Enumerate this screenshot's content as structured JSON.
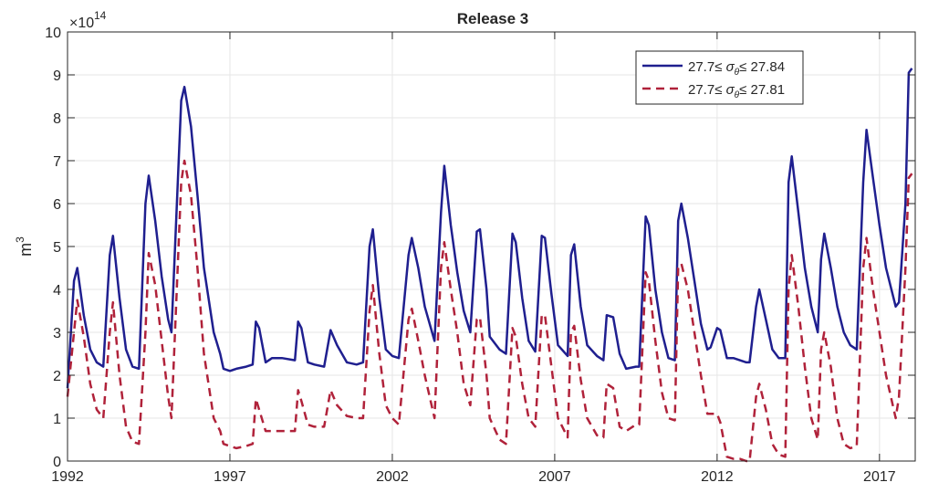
{
  "chart_data": {
    "type": "line",
    "title": "Release 3",
    "ylabel": "m",
    "ylabel_superscript": "3",
    "xlabel": "",
    "y_multiplier": {
      "base": "×10",
      "exponent": "14"
    },
    "xlim": [
      1992,
      2018.1
    ],
    "ylim": [
      0,
      10
    ],
    "xticks": [
      1992,
      1997,
      2002,
      2007,
      2012,
      2017
    ],
    "xtick_labels": [
      "1992",
      "1997",
      "2002",
      "2007",
      "2012",
      "2017"
    ],
    "yticks": [
      0,
      1,
      2,
      3,
      4,
      5,
      6,
      7,
      8,
      9,
      10
    ],
    "ytick_labels": [
      "0",
      "1",
      "2",
      "3",
      "4",
      "5",
      "6",
      "7",
      "8",
      "9",
      "10"
    ],
    "grid": true,
    "legend_position": "top-right",
    "series": [
      {
        "name": "27.7≤ σθ≤ 27.84",
        "legend": {
          "pre": "27.7≤ ",
          "sym": "σ",
          "sub": "θ",
          "post": "≤ 27.84"
        },
        "color": "#1f1f8f",
        "dash": "solid",
        "points": [
          [
            1992.0,
            1.7
          ],
          [
            1992.2,
            4.2
          ],
          [
            1992.3,
            4.5
          ],
          [
            1992.5,
            3.4
          ],
          [
            1992.7,
            2.6
          ],
          [
            1992.9,
            2.3
          ],
          [
            1993.1,
            2.2
          ],
          [
            1993.3,
            4.8
          ],
          [
            1993.4,
            5.25
          ],
          [
            1993.6,
            3.8
          ],
          [
            1993.8,
            2.6
          ],
          [
            1994.0,
            2.2
          ],
          [
            1994.2,
            2.15
          ],
          [
            1994.4,
            6.0
          ],
          [
            1994.5,
            6.65
          ],
          [
            1994.7,
            5.6
          ],
          [
            1994.9,
            4.3
          ],
          [
            1995.1,
            3.3
          ],
          [
            1995.2,
            3.0
          ],
          [
            1995.5,
            8.4
          ],
          [
            1995.6,
            8.72
          ],
          [
            1995.8,
            7.8
          ],
          [
            1996.0,
            6.2
          ],
          [
            1996.2,
            4.5
          ],
          [
            1996.5,
            3.0
          ],
          [
            1996.7,
            2.5
          ],
          [
            1996.8,
            2.15
          ],
          [
            1997.0,
            2.1
          ],
          [
            1997.2,
            2.15
          ],
          [
            1997.5,
            2.2
          ],
          [
            1997.7,
            2.25
          ],
          [
            1997.8,
            3.25
          ],
          [
            1997.9,
            3.1
          ],
          [
            1998.1,
            2.3
          ],
          [
            1998.3,
            2.4
          ],
          [
            1998.6,
            2.4
          ],
          [
            1999.0,
            2.35
          ],
          [
            1999.1,
            3.25
          ],
          [
            1999.2,
            3.1
          ],
          [
            1999.4,
            2.3
          ],
          [
            1999.6,
            2.25
          ],
          [
            1999.9,
            2.2
          ],
          [
            2000.1,
            3.05
          ],
          [
            2000.3,
            2.7
          ],
          [
            2000.6,
            2.3
          ],
          [
            2000.9,
            2.25
          ],
          [
            2001.1,
            2.3
          ],
          [
            2001.3,
            5.0
          ],
          [
            2001.4,
            5.4
          ],
          [
            2001.6,
            3.8
          ],
          [
            2001.8,
            2.6
          ],
          [
            2002.0,
            2.45
          ],
          [
            2002.2,
            2.4
          ],
          [
            2002.5,
            4.8
          ],
          [
            2002.6,
            5.2
          ],
          [
            2002.8,
            4.5
          ],
          [
            2003.0,
            3.6
          ],
          [
            2003.3,
            2.8
          ],
          [
            2003.5,
            5.8
          ],
          [
            2003.6,
            6.88
          ],
          [
            2003.8,
            5.5
          ],
          [
            2004.0,
            4.4
          ],
          [
            2004.2,
            3.5
          ],
          [
            2004.4,
            3.0
          ],
          [
            2004.6,
            5.35
          ],
          [
            2004.7,
            5.4
          ],
          [
            2004.9,
            4.0
          ],
          [
            2005.0,
            2.9
          ],
          [
            2005.3,
            2.6
          ],
          [
            2005.5,
            2.5
          ],
          [
            2005.7,
            5.3
          ],
          [
            2005.8,
            5.1
          ],
          [
            2006.0,
            3.8
          ],
          [
            2006.2,
            2.8
          ],
          [
            2006.4,
            2.55
          ],
          [
            2006.6,
            5.25
          ],
          [
            2006.7,
            5.2
          ],
          [
            2006.9,
            3.9
          ],
          [
            2007.1,
            2.7
          ],
          [
            2007.4,
            2.45
          ],
          [
            2007.5,
            4.8
          ],
          [
            2007.6,
            5.05
          ],
          [
            2007.8,
            3.6
          ],
          [
            2008.0,
            2.7
          ],
          [
            2008.3,
            2.45
          ],
          [
            2008.5,
            2.35
          ],
          [
            2008.6,
            3.4
          ],
          [
            2008.8,
            3.35
          ],
          [
            2009.0,
            2.5
          ],
          [
            2009.2,
            2.15
          ],
          [
            2009.5,
            2.2
          ],
          [
            2009.6,
            2.2
          ],
          [
            2009.8,
            5.7
          ],
          [
            2009.9,
            5.5
          ],
          [
            2010.1,
            4.0
          ],
          [
            2010.3,
            3.0
          ],
          [
            2010.5,
            2.4
          ],
          [
            2010.7,
            2.35
          ],
          [
            2010.8,
            5.6
          ],
          [
            2010.9,
            6.0
          ],
          [
            2011.1,
            5.2
          ],
          [
            2011.3,
            4.2
          ],
          [
            2011.5,
            3.2
          ],
          [
            2011.7,
            2.6
          ],
          [
            2011.8,
            2.65
          ],
          [
            2012.0,
            3.1
          ],
          [
            2012.1,
            3.05
          ],
          [
            2012.3,
            2.4
          ],
          [
            2012.5,
            2.4
          ],
          [
            2012.7,
            2.35
          ],
          [
            2012.9,
            2.3
          ],
          [
            2013.0,
            2.3
          ],
          [
            2013.2,
            3.6
          ],
          [
            2013.3,
            4.0
          ],
          [
            2013.5,
            3.3
          ],
          [
            2013.7,
            2.6
          ],
          [
            2013.9,
            2.4
          ],
          [
            2014.1,
            2.4
          ],
          [
            2014.2,
            6.5
          ],
          [
            2014.3,
            7.1
          ],
          [
            2014.5,
            5.8
          ],
          [
            2014.7,
            4.5
          ],
          [
            2014.9,
            3.6
          ],
          [
            2015.1,
            3.0
          ],
          [
            2015.2,
            4.7
          ],
          [
            2015.3,
            5.3
          ],
          [
            2015.5,
            4.5
          ],
          [
            2015.7,
            3.6
          ],
          [
            2015.9,
            3.0
          ],
          [
            2016.1,
            2.7
          ],
          [
            2016.3,
            2.6
          ],
          [
            2016.5,
            6.5
          ],
          [
            2016.6,
            7.72
          ],
          [
            2016.8,
            6.6
          ],
          [
            2017.0,
            5.5
          ],
          [
            2017.2,
            4.5
          ],
          [
            2017.5,
            3.6
          ],
          [
            2017.6,
            3.7
          ],
          [
            2017.8,
            6.0
          ],
          [
            2017.9,
            9.05
          ],
          [
            2018.0,
            9.15
          ]
        ]
      },
      {
        "name": "27.7≤ σθ≤ 27.81",
        "legend": {
          "pre": "27.7≤ ",
          "sym": "σ",
          "sub": "θ",
          "post": "≤ 27.81"
        },
        "color": "#b0223a",
        "dash": "dashed",
        "points": [
          [
            1992.0,
            1.5
          ],
          [
            1992.2,
            3.0
          ],
          [
            1992.3,
            3.75
          ],
          [
            1992.5,
            2.9
          ],
          [
            1992.7,
            1.8
          ],
          [
            1992.9,
            1.2
          ],
          [
            1993.1,
            1.0
          ],
          [
            1993.3,
            3.0
          ],
          [
            1993.4,
            3.7
          ],
          [
            1993.6,
            2.0
          ],
          [
            1993.8,
            0.8
          ],
          [
            1994.0,
            0.45
          ],
          [
            1994.2,
            0.4
          ],
          [
            1994.4,
            3.0
          ],
          [
            1994.5,
            4.85
          ],
          [
            1994.7,
            4.1
          ],
          [
            1994.9,
            2.8
          ],
          [
            1995.1,
            1.5
          ],
          [
            1995.2,
            1.0
          ],
          [
            1995.5,
            6.5
          ],
          [
            1995.6,
            7.0
          ],
          [
            1995.8,
            6.2
          ],
          [
            1996.0,
            4.5
          ],
          [
            1996.2,
            2.5
          ],
          [
            1996.5,
            1.0
          ],
          [
            1996.7,
            0.7
          ],
          [
            1996.8,
            0.4
          ],
          [
            1997.0,
            0.35
          ],
          [
            1997.2,
            0.3
          ],
          [
            1997.5,
            0.35
          ],
          [
            1997.7,
            0.4
          ],
          [
            1997.8,
            1.45
          ],
          [
            1997.9,
            1.2
          ],
          [
            1998.1,
            0.7
          ],
          [
            1998.3,
            0.7
          ],
          [
            1998.6,
            0.7
          ],
          [
            1999.0,
            0.7
          ],
          [
            1999.1,
            1.65
          ],
          [
            1999.2,
            1.4
          ],
          [
            1999.4,
            0.85
          ],
          [
            1999.6,
            0.8
          ],
          [
            1999.9,
            0.8
          ],
          [
            2000.1,
            1.65
          ],
          [
            2000.3,
            1.3
          ],
          [
            2000.6,
            1.05
          ],
          [
            2000.9,
            1.0
          ],
          [
            2001.1,
            1.0
          ],
          [
            2001.3,
            3.5
          ],
          [
            2001.4,
            4.1
          ],
          [
            2001.6,
            2.5
          ],
          [
            2001.8,
            1.3
          ],
          [
            2002.0,
            1.0
          ],
          [
            2002.2,
            0.85
          ],
          [
            2002.5,
            3.3
          ],
          [
            2002.6,
            3.55
          ],
          [
            2002.8,
            2.8
          ],
          [
            2003.0,
            2.0
          ],
          [
            2003.3,
            1.0
          ],
          [
            2003.5,
            4.5
          ],
          [
            2003.6,
            5.1
          ],
          [
            2003.8,
            4.0
          ],
          [
            2004.0,
            3.0
          ],
          [
            2004.2,
            1.8
          ],
          [
            2004.4,
            1.3
          ],
          [
            2004.6,
            3.3
          ],
          [
            2004.7,
            3.35
          ],
          [
            2004.9,
            2.0
          ],
          [
            2005.0,
            1.0
          ],
          [
            2005.3,
            0.5
          ],
          [
            2005.5,
            0.4
          ],
          [
            2005.7,
            3.1
          ],
          [
            2005.8,
            2.9
          ],
          [
            2006.0,
            1.8
          ],
          [
            2006.2,
            1.0
          ],
          [
            2006.4,
            0.8
          ],
          [
            2006.6,
            3.4
          ],
          [
            2006.7,
            3.4
          ],
          [
            2006.9,
            2.2
          ],
          [
            2007.1,
            1.0
          ],
          [
            2007.4,
            0.55
          ],
          [
            2007.5,
            3.0
          ],
          [
            2007.6,
            3.15
          ],
          [
            2007.8,
            1.9
          ],
          [
            2008.0,
            1.0
          ],
          [
            2008.3,
            0.6
          ],
          [
            2008.5,
            0.55
          ],
          [
            2008.6,
            1.8
          ],
          [
            2008.8,
            1.7
          ],
          [
            2009.0,
            0.8
          ],
          [
            2009.2,
            0.7
          ],
          [
            2009.5,
            0.85
          ],
          [
            2009.6,
            0.85
          ],
          [
            2009.8,
            4.4
          ],
          [
            2009.9,
            4.2
          ],
          [
            2010.1,
            2.8
          ],
          [
            2010.3,
            1.6
          ],
          [
            2010.5,
            1.0
          ],
          [
            2010.7,
            0.95
          ],
          [
            2010.8,
            4.5
          ],
          [
            2010.9,
            4.6
          ],
          [
            2011.1,
            4.0
          ],
          [
            2011.3,
            3.0
          ],
          [
            2011.5,
            2.0
          ],
          [
            2011.7,
            1.1
          ],
          [
            2011.8,
            1.1
          ],
          [
            2012.0,
            1.1
          ],
          [
            2012.1,
            0.9
          ],
          [
            2012.3,
            0.1
          ],
          [
            2012.5,
            0.05
          ],
          [
            2012.7,
            0.05
          ],
          [
            2012.9,
            0.0
          ],
          [
            2013.0,
            0.0
          ],
          [
            2013.2,
            1.5
          ],
          [
            2013.3,
            1.8
          ],
          [
            2013.5,
            1.2
          ],
          [
            2013.7,
            0.4
          ],
          [
            2013.9,
            0.15
          ],
          [
            2014.1,
            0.1
          ],
          [
            2014.2,
            4.0
          ],
          [
            2014.3,
            4.8
          ],
          [
            2014.5,
            3.6
          ],
          [
            2014.7,
            2.2
          ],
          [
            2014.9,
            1.0
          ],
          [
            2015.1,
            0.5
          ],
          [
            2015.2,
            2.6
          ],
          [
            2015.3,
            3.0
          ],
          [
            2015.5,
            2.2
          ],
          [
            2015.7,
            1.0
          ],
          [
            2015.9,
            0.4
          ],
          [
            2016.1,
            0.3
          ],
          [
            2016.3,
            0.35
          ],
          [
            2016.5,
            4.5
          ],
          [
            2016.6,
            5.2
          ],
          [
            2016.8,
            4.0
          ],
          [
            2017.0,
            3.0
          ],
          [
            2017.2,
            2.0
          ],
          [
            2017.5,
            1.0
          ],
          [
            2017.6,
            1.5
          ],
          [
            2017.8,
            4.5
          ],
          [
            2017.9,
            6.6
          ],
          [
            2018.0,
            6.7
          ]
        ]
      }
    ]
  }
}
